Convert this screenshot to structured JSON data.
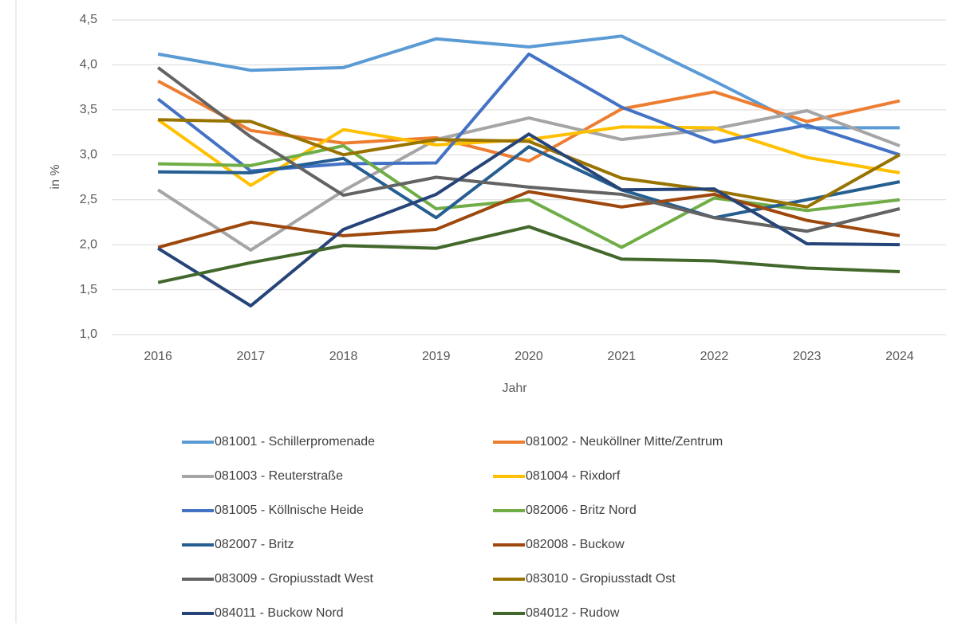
{
  "chart_data": {
    "type": "line",
    "categories": [
      "2016",
      "2017",
      "2018",
      "2019",
      "2020",
      "2021",
      "2022",
      "2023",
      "2024"
    ],
    "x_label": "Jahr",
    "y_label": "in %",
    "ylim": [
      1.0,
      4.5
    ],
    "yticks": [
      {
        "value": 1.0,
        "label": "1,0"
      },
      {
        "value": 1.5,
        "label": "1,5"
      },
      {
        "value": 2.0,
        "label": "2,0"
      },
      {
        "value": 2.5,
        "label": "2,5"
      },
      {
        "value": 3.0,
        "label": "3,0"
      },
      {
        "value": 3.5,
        "label": "3,5"
      },
      {
        "value": 4.0,
        "label": "4,0"
      },
      {
        "value": 4.5,
        "label": "4,5"
      }
    ],
    "grid": true,
    "series": [
      {
        "name": "081001 - Schillerpromenade",
        "color": "#5b9bd5",
        "values": [
          4.12,
          3.94,
          3.97,
          4.29,
          4.2,
          4.32,
          3.82,
          3.3,
          3.3
        ]
      },
      {
        "name": "081002 - Neuköllner Mitte/Zentrum",
        "color": "#ed7d31",
        "values": [
          3.82,
          3.27,
          3.13,
          3.19,
          2.93,
          3.51,
          3.7,
          3.37,
          3.6
        ]
      },
      {
        "name": "081003 - Reuterstraße",
        "color": "#a5a5a5",
        "values": [
          2.61,
          1.94,
          2.6,
          3.17,
          3.41,
          3.17,
          3.29,
          3.49,
          3.1
        ]
      },
      {
        "name": "081004 - Rixdorf",
        "color": "#ffc000",
        "values": [
          3.39,
          2.66,
          3.28,
          3.11,
          3.17,
          3.31,
          3.3,
          2.97,
          2.8
        ]
      },
      {
        "name": "081005 - Köllnische Heide",
        "color": "#4472c4",
        "values": [
          3.62,
          2.82,
          2.9,
          2.91,
          4.12,
          3.53,
          3.14,
          3.33,
          3.0
        ]
      },
      {
        "name": "082006 - Britz Nord",
        "color": "#70ad47",
        "values": [
          2.9,
          2.88,
          3.1,
          2.4,
          2.5,
          1.97,
          2.52,
          2.38,
          2.5
        ]
      },
      {
        "name": "082007 - Britz",
        "color": "#255e91",
        "values": [
          2.81,
          2.8,
          2.96,
          2.3,
          3.09,
          2.61,
          2.3,
          2.5,
          2.7
        ]
      },
      {
        "name": "082008 - Buckow",
        "color": "#9e480e",
        "values": [
          1.97,
          2.25,
          2.1,
          2.17,
          2.59,
          2.42,
          2.56,
          2.27,
          2.1
        ]
      },
      {
        "name": "083009 - Gropiusstadt West",
        "color": "#636363",
        "values": [
          3.97,
          3.2,
          2.55,
          2.75,
          2.64,
          2.56,
          2.3,
          2.15,
          2.4
        ]
      },
      {
        "name": "083010 - Gropiusstadt Ost",
        "color": "#997300",
        "values": [
          3.39,
          3.37,
          3.0,
          3.17,
          3.15,
          2.74,
          2.6,
          2.42,
          3.0
        ]
      },
      {
        "name": "084011 - Buckow Nord",
        "color": "#264478",
        "values": [
          1.96,
          1.32,
          2.17,
          2.56,
          3.23,
          2.61,
          2.62,
          2.01,
          2.0
        ]
      },
      {
        "name": "084012 - Rudow",
        "color": "#43682b",
        "values": [
          1.58,
          1.8,
          1.99,
          1.96,
          2.2,
          1.84,
          1.82,
          1.74,
          1.7
        ]
      }
    ]
  }
}
